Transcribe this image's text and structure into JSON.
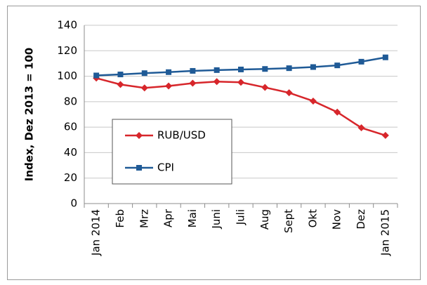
{
  "chart_data": {
    "type": "line",
    "y_label": "Index, Dez 2013 = 100",
    "categories": [
      "Jan 2014",
      "Feb",
      "Mrz",
      "Apr",
      "Mai",
      "Juni",
      "Juli",
      "Aug",
      "Sept",
      "Okt",
      "Nov",
      "Dez",
      "Jan 2015"
    ],
    "series": [
      {
        "name": "RUB/USD",
        "color": "#d7262b",
        "marker": "diamond",
        "values": [
          98.5,
          93.5,
          90.8,
          92.3,
          94.5,
          95.8,
          95.2,
          91.2,
          87,
          80.5,
          71.8,
          59.5,
          53.5
        ]
      },
      {
        "name": "CPI",
        "color": "#1f5a96",
        "marker": "square",
        "values": [
          100.6,
          101.4,
          102.4,
          103.2,
          104.2,
          104.8,
          105.3,
          105.7,
          106.3,
          107.2,
          108.5,
          111.4,
          114.8
        ]
      }
    ],
    "ylim": [
      0,
      140
    ],
    "yticks": [
      0,
      20,
      40,
      60,
      80,
      100,
      120,
      140
    ],
    "grid": true,
    "legend": "center-left"
  }
}
